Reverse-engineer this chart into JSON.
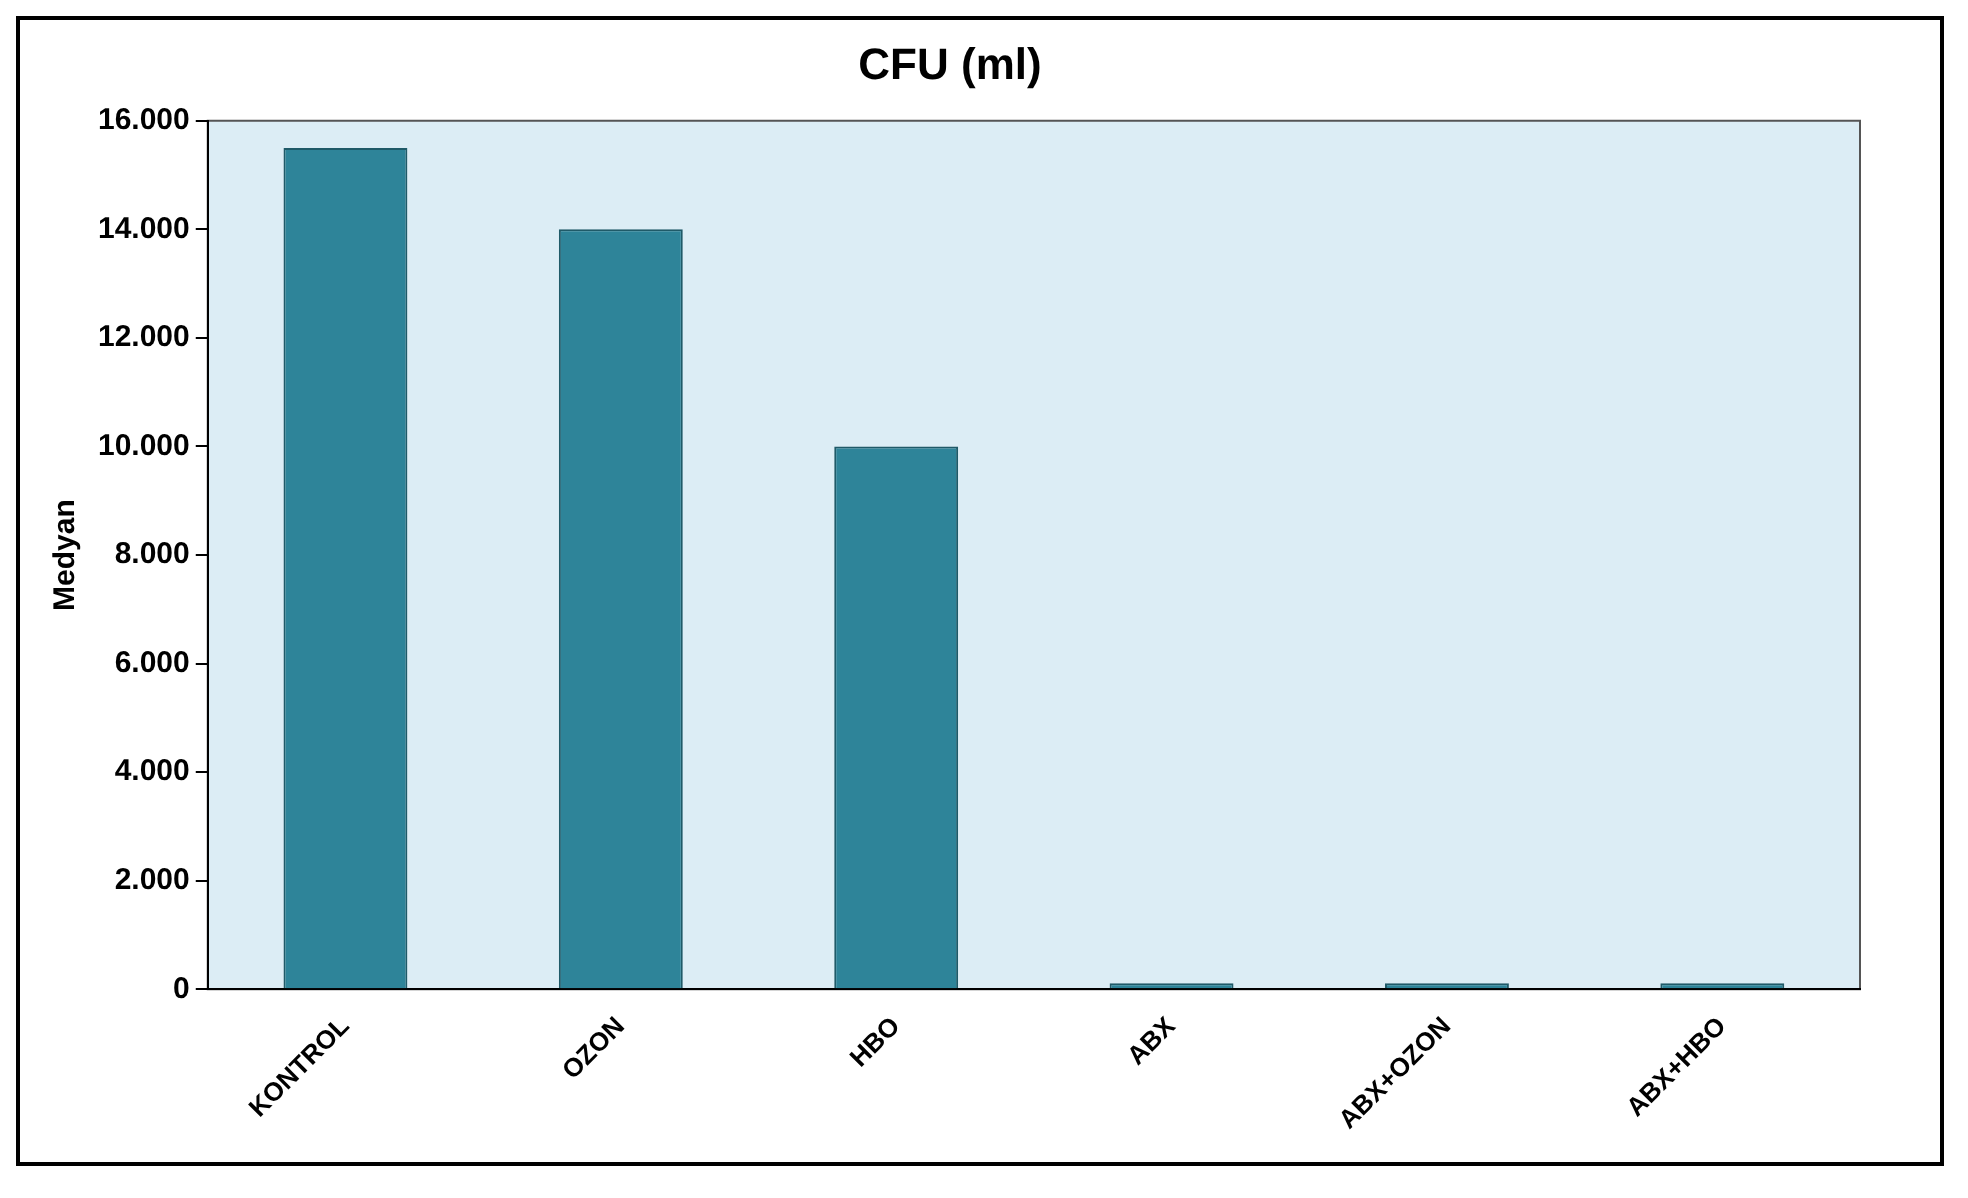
{
  "chart_data": {
    "type": "bar",
    "title": "CFU (ml)",
    "ylabel": "Medyan",
    "categories": [
      "KONTROL",
      "OZON",
      "HBO",
      "ABX",
      "ABX+OZON",
      "ABX+HBO"
    ],
    "values": [
      15500,
      14000,
      10000,
      0,
      0,
      0
    ],
    "color": "#2e8499",
    "ylim": [
      0,
      16000
    ],
    "yticks": [
      0,
      {
        "value": 2000,
        "label": "2.000"
      },
      {
        "value": 4000,
        "label": "4.000"
      },
      {
        "value": 6000,
        "label": "6.000"
      },
      {
        "value": 8000,
        "label": "8.000"
      },
      {
        "value": 10000,
        "label": "10.000"
      },
      {
        "value": 12000,
        "label": "12.000"
      },
      {
        "value": 14000,
        "label": "14.000"
      },
      {
        "value": 16000,
        "label": "16.000"
      }
    ],
    "grid": false,
    "legend": false
  }
}
